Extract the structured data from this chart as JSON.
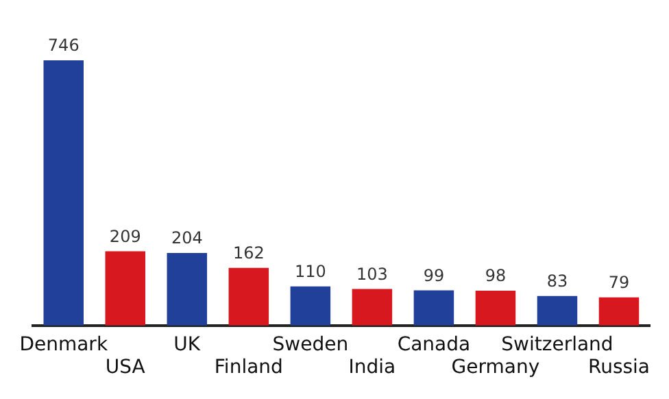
{
  "chart_data": {
    "type": "bar",
    "categories": [
      "Denmark",
      "USA",
      "UK",
      "Finland",
      "Sweden",
      "India",
      "Canada",
      "Germany",
      "Switzerland",
      "Russia"
    ],
    "values": [
      746,
      209,
      204,
      162,
      110,
      103,
      99,
      98,
      83,
      79
    ],
    "colors": [
      "#21409a",
      "#d7191f",
      "#21409a",
      "#d7191f",
      "#21409a",
      "#d7191f",
      "#21409a",
      "#d7191f",
      "#21409a",
      "#d7191f"
    ],
    "data_labels": true,
    "grid": false,
    "legend": false
  }
}
